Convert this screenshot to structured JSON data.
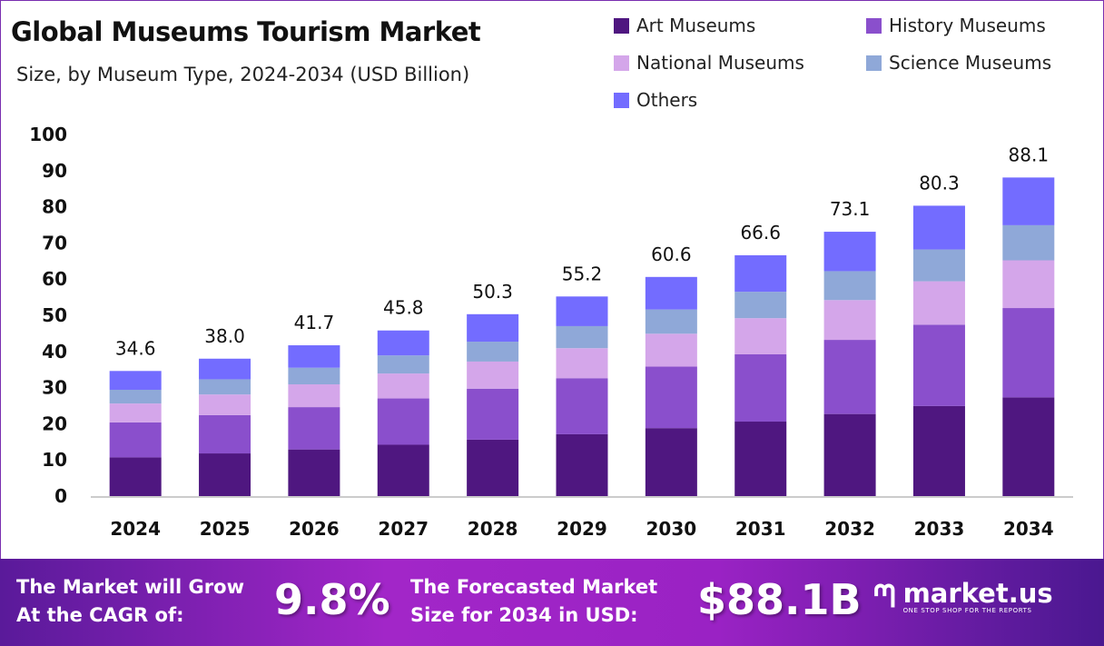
{
  "chart_data": {
    "type": "bar",
    "stacked": true,
    "title": "Global Museums Tourism Market",
    "subtitle": "Size, by Museum Type, 2024-2034 (USD Billion)",
    "categories": [
      "2024",
      "2025",
      "2026",
      "2027",
      "2028",
      "2029",
      "2030",
      "2031",
      "2032",
      "2033",
      "2034"
    ],
    "series": [
      {
        "name": "Art Museums",
        "color": "#4f1780",
        "values": [
          10.7,
          11.8,
          12.9,
          14.2,
          15.6,
          17.1,
          18.8,
          20.6,
          22.7,
          24.9,
          27.3
        ]
      },
      {
        "name": "History Museums",
        "color": "#8a4fcc",
        "values": [
          9.7,
          10.6,
          11.7,
          12.8,
          14.1,
          15.5,
          17.0,
          18.6,
          20.5,
          22.5,
          24.7
        ]
      },
      {
        "name": "National Museums",
        "color": "#d4a6ea",
        "values": [
          5.2,
          5.7,
          6.3,
          6.9,
          7.5,
          8.3,
          9.1,
          10.0,
          11.0,
          12.0,
          13.2
        ]
      },
      {
        "name": "Science Museums",
        "color": "#8fa8d8",
        "values": [
          3.8,
          4.2,
          4.6,
          5.0,
          5.5,
          6.1,
          6.7,
          7.3,
          8.0,
          8.8,
          9.7
        ]
      },
      {
        "name": "Others",
        "color": "#736cff",
        "values": [
          5.2,
          5.7,
          6.2,
          6.9,
          7.6,
          8.2,
          9.0,
          10.1,
          10.9,
          12.1,
          13.2
        ]
      }
    ],
    "totals": [
      "34.6",
      "38.0",
      "41.7",
      "45.8",
      "50.3",
      "55.2",
      "60.6",
      "66.6",
      "73.1",
      "80.3",
      "88.1"
    ],
    "yticks": [
      "0",
      "10",
      "20",
      "30",
      "40",
      "50",
      "60",
      "70",
      "80",
      "90",
      "100"
    ],
    "ylim": [
      0,
      100
    ],
    "xlabel": "",
    "ylabel": "",
    "grid": false,
    "legend_position": "top-right"
  },
  "footer": {
    "cagr_label_1": "The Market will Grow",
    "cagr_label_2": "At the CAGR of:",
    "cagr_value": "9.8%",
    "forecast_label_1": "The Forecasted Market",
    "forecast_label_2": "Size for 2034 in USD:",
    "forecast_value": "$88.1B",
    "brand": "market.us",
    "brand_tagline": "ONE STOP SHOP FOR THE REPORTS"
  }
}
